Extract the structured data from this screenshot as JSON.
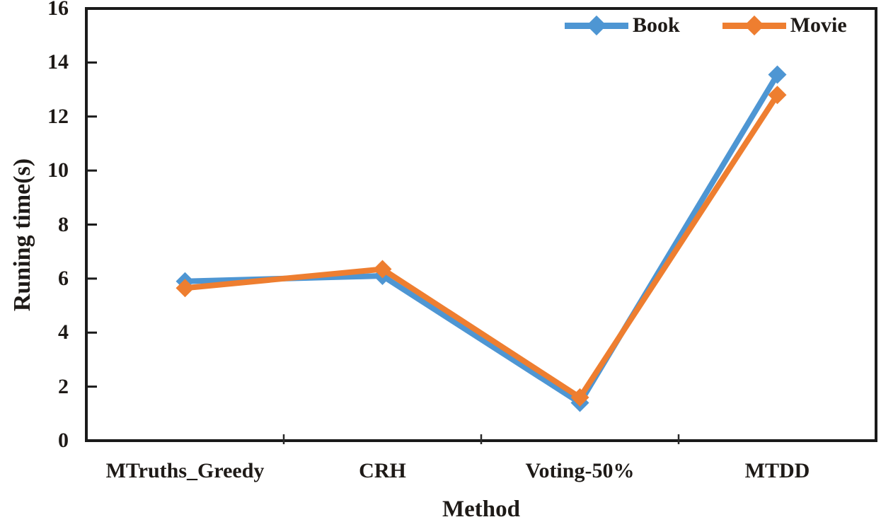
{
  "chart_data": {
    "type": "line",
    "title": "",
    "xlabel": "Method",
    "ylabel": "Runing time(s)",
    "categories": [
      "MTruths_Greedy",
      "CRH",
      "Voting-50%",
      "MTDD"
    ],
    "series": [
      {
        "name": "Book",
        "color": "#4E96D3",
        "marker": "diamond",
        "values": [
          5.9,
          6.1,
          1.4,
          13.55
        ]
      },
      {
        "name": "Movie",
        "color": "#EE7E30",
        "marker": "diamond",
        "values": [
          5.65,
          6.35,
          1.6,
          12.8
        ]
      }
    ],
    "ylim": [
      0,
      16
    ],
    "yticks": [
      0,
      2,
      4,
      6,
      8,
      10,
      12,
      14,
      16
    ],
    "grid": false,
    "legend_position": "top-right-inside",
    "axis_color": "#1A1A1A",
    "tick_color": "#2A2A2A",
    "text_color": "#1E1A17",
    "background": "#FFFFFF"
  }
}
